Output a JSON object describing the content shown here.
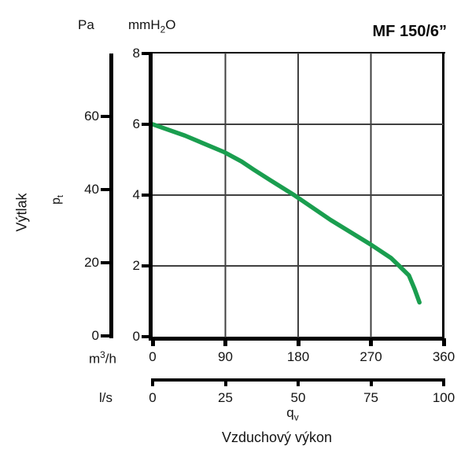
{
  "title": "MF 150/6”",
  "ylabel": "Výtlak",
  "xlabel": "Vzduchový výkon",
  "units": {
    "pa": "Pa",
    "mm": {
      "pre": "mmH",
      "sub": "2",
      "post": "O"
    },
    "m3h": {
      "pre": "m",
      "sup": "3",
      "post": "/h"
    },
    "ls": "l/s"
  },
  "symbols": {
    "pressure": {
      "base": "p",
      "sub": "t"
    },
    "flow": {
      "base": "q",
      "sub": "v"
    }
  },
  "colors": {
    "curve": "#1a9e4f",
    "axis": "#000000",
    "grid": "#404040",
    "text": "#141414"
  },
  "chart_data": {
    "type": "line",
    "title": "MF 150/6”",
    "xlabel": "Vzduchový výkon",
    "ylabel": "Výtlak (pₜ)",
    "grid": true,
    "legend": false,
    "x_axes": [
      {
        "unit": "m³/h",
        "ticks": [
          0,
          90,
          180,
          270,
          360
        ],
        "range": [
          0,
          360
        ],
        "gridlines": [
          90,
          180,
          270
        ]
      },
      {
        "unit": "l/s",
        "ticks": [
          0,
          25,
          50,
          75,
          100
        ],
        "range": [
          0,
          100
        ]
      }
    ],
    "y_axes": [
      {
        "unit": "Pa",
        "ticks": [
          0,
          20,
          40,
          60
        ],
        "range": [
          0,
          77
        ]
      },
      {
        "unit": "mmH₂O",
        "ticks": [
          0,
          2,
          4,
          6,
          8
        ],
        "range": [
          0,
          8
        ],
        "gridlines": [
          2,
          4,
          6
        ]
      }
    ],
    "series": [
      {
        "name": "MF 150/6” fan curve",
        "color": "#1a9e4f",
        "x_m3h": [
          0,
          40,
          88,
          110,
          125,
          145,
          175,
          220,
          270,
          295,
          305,
          317,
          324,
          330
        ],
        "y_mmH2O": [
          6.0,
          5.68,
          5.22,
          4.95,
          4.72,
          4.43,
          4.0,
          3.3,
          2.6,
          2.22,
          2.0,
          1.73,
          1.35,
          0.97
        ]
      }
    ]
  }
}
